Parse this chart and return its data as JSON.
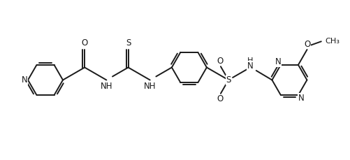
{
  "background_color": "#ffffff",
  "line_color": "#1a1a1a",
  "line_width": 1.4,
  "font_size": 8.5,
  "fig_width": 5.01,
  "fig_height": 2.29,
  "dpi": 100,
  "xlim": [
    0,
    10.02
  ],
  "ylim": [
    0,
    4.58
  ]
}
